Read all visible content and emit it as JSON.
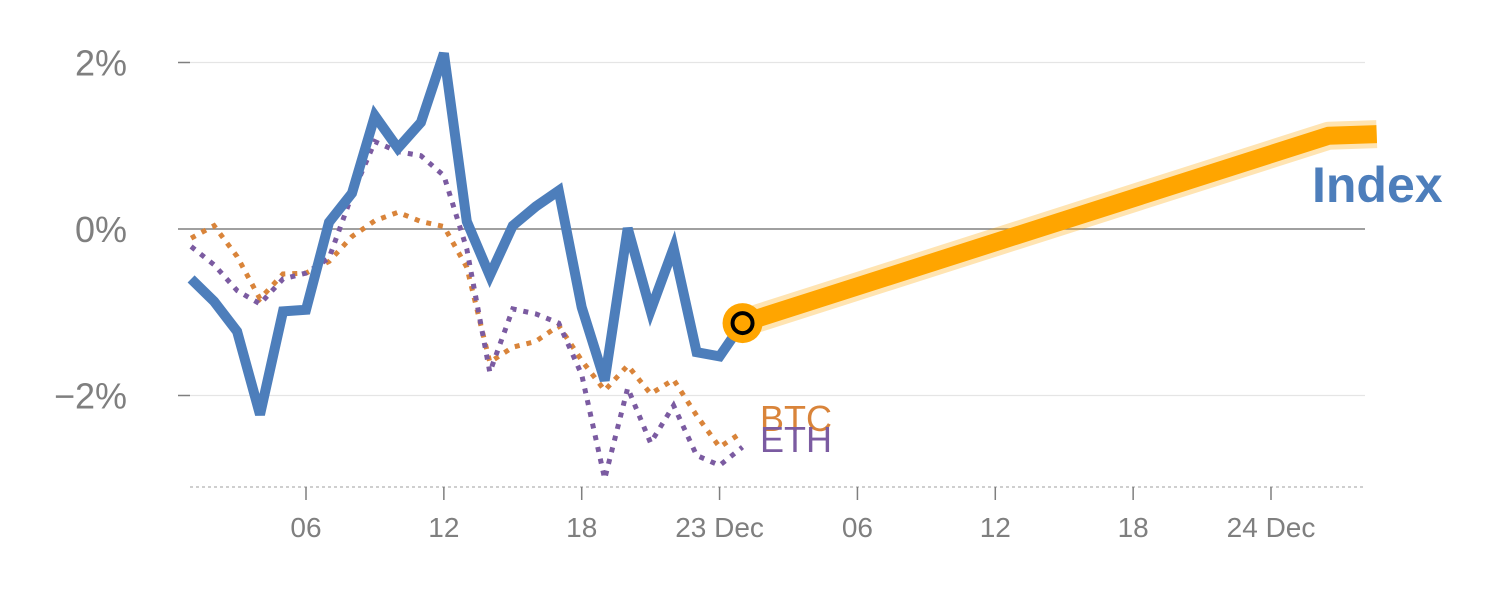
{
  "chart_data": {
    "type": "line",
    "title": "",
    "xlabel": "",
    "ylabel": "",
    "yticks": [
      "2%",
      "0%",
      "−2%"
    ],
    "ytick_values": [
      2,
      0,
      -2
    ],
    "ylim": [
      -3.1,
      2.2
    ],
    "xticks": [
      "06",
      "12",
      "18",
      "23 Dec",
      "06",
      "12",
      "18",
      "24 Dec"
    ],
    "xtick_hours": [
      6,
      12,
      18,
      24,
      30,
      36,
      42,
      48
    ],
    "xlim_hours": [
      0,
      51.5
    ],
    "x_unit": "hours from 00:00 on 22 Dec",
    "grid": true,
    "colors": {
      "index": "#4d7ebb",
      "btc": "#d9843a",
      "eth": "#7b5ba1",
      "forecast": "#ffa500",
      "marker_stroke": "#000000",
      "axis": "#7f7f7f",
      "grid": "#e5e5e5"
    },
    "series": [
      {
        "name": "Index",
        "style": "solid",
        "x": [
          1,
          2,
          3,
          4,
          5,
          6,
          7,
          8,
          9,
          10,
          11,
          12,
          13,
          14,
          15,
          16,
          17,
          18,
          19,
          20,
          21,
          22,
          23,
          24,
          25
        ],
        "y": [
          -0.6,
          -0.87,
          -1.23,
          -2.23,
          -0.99,
          -0.97,
          0.08,
          0.43,
          1.36,
          0.97,
          1.28,
          2.11,
          0.09,
          -0.56,
          0.04,
          0.27,
          0.46,
          -0.94,
          -1.82,
          0.01,
          -0.98,
          -0.23,
          -1.48,
          -1.53,
          -1.13
        ]
      },
      {
        "name": "BTC",
        "style": "dotted",
        "x": [
          1,
          2,
          3,
          4,
          5,
          6,
          7,
          8,
          9,
          10,
          11,
          12,
          13,
          14,
          15,
          16,
          17,
          18,
          19,
          20,
          21,
          22,
          23,
          24,
          25
        ],
        "y": [
          -0.11,
          0.04,
          -0.33,
          -0.84,
          -0.54,
          -0.53,
          -0.39,
          -0.09,
          0.1,
          0.2,
          0.09,
          0.03,
          -0.46,
          -1.6,
          -1.42,
          -1.35,
          -1.16,
          -1.58,
          -1.94,
          -1.64,
          -1.98,
          -1.81,
          -2.24,
          -2.62,
          -2.44
        ]
      },
      {
        "name": "ETH",
        "style": "dotted",
        "x": [
          1,
          2,
          3,
          4,
          5,
          6,
          7,
          8,
          9,
          10,
          11,
          12,
          13,
          14,
          15,
          16,
          17,
          18,
          19,
          20,
          21,
          22,
          23,
          24,
          25
        ],
        "y": [
          -0.21,
          -0.43,
          -0.74,
          -0.9,
          -0.6,
          -0.53,
          -0.35,
          0.41,
          1.05,
          0.93,
          0.88,
          0.64,
          -0.24,
          -1.72,
          -0.96,
          -1.02,
          -1.13,
          -1.75,
          -3.0,
          -1.91,
          -2.57,
          -2.12,
          -2.72,
          -2.84,
          -2.62
        ]
      },
      {
        "name": "Index forecast",
        "style": "highlight",
        "x": [
          25,
          50.5,
          52.6
        ],
        "y": [
          -1.13,
          1.12,
          1.14
        ]
      }
    ],
    "end_labels": {
      "index": "Index",
      "btc": "BTC",
      "eth": "ETH"
    },
    "marker": {
      "x": 25,
      "y": -1.13
    }
  }
}
